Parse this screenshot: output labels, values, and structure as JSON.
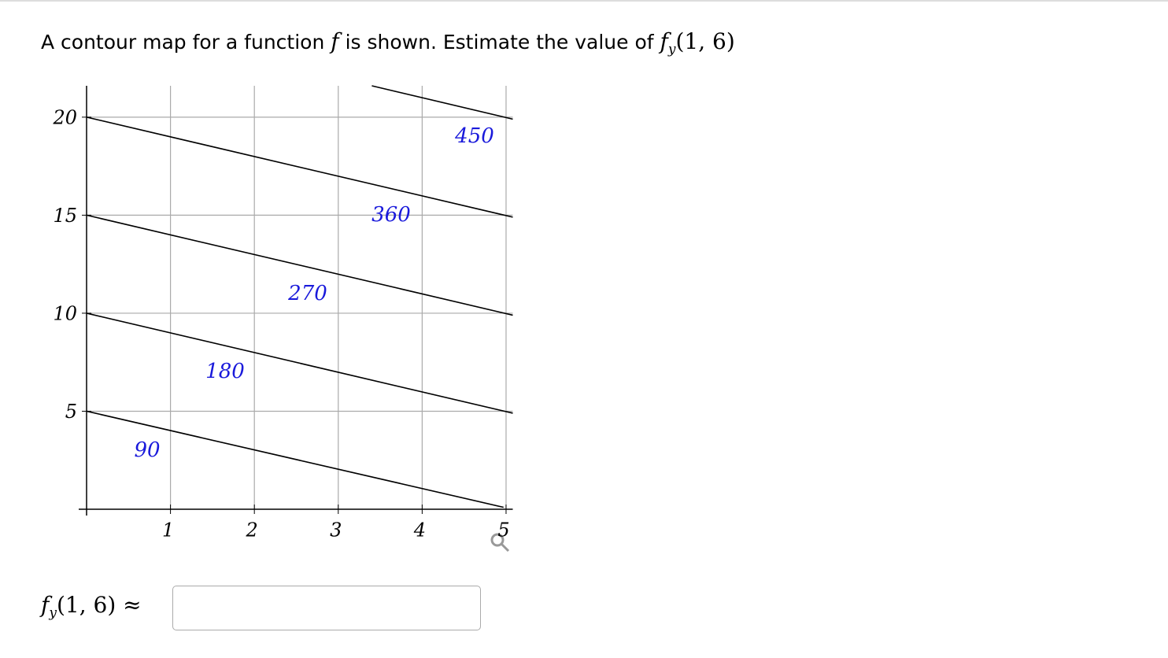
{
  "question": {
    "before": "A contour map for a function",
    "f": "f",
    "after": "is shown. Estimate the value of",
    "math": {
      "f": "f",
      "sub": "y",
      "args": "(1, 6)"
    }
  },
  "chart_data": {
    "type": "contour",
    "xlim": [
      0,
      5.08
    ],
    "ylim": [
      0,
      21.6
    ],
    "xticks": [
      1,
      2,
      3,
      4,
      5
    ],
    "yticks": [
      5,
      10,
      15,
      20
    ],
    "grid": true,
    "line_color": "#000000",
    "label_color": "#1a1adb",
    "contours": [
      {
        "level": 90,
        "x": [
          0,
          4.97
        ],
        "y": [
          5,
          0.1
        ]
      },
      {
        "level": 180,
        "x": [
          0,
          5.08
        ],
        "y": [
          10,
          4.9
        ]
      },
      {
        "level": 270,
        "x": [
          0,
          5.08
        ],
        "y": [
          15,
          9.9
        ]
      },
      {
        "level": 360,
        "x": [
          0,
          5.08
        ],
        "y": [
          20,
          14.9
        ]
      },
      {
        "level": 450,
        "x": [
          3.4,
          5.08
        ],
        "y": [
          21.6,
          19.9
        ]
      }
    ]
  },
  "answer": {
    "f": "f",
    "sub": "y",
    "args": "(1, 6)",
    "approx": "≈"
  }
}
